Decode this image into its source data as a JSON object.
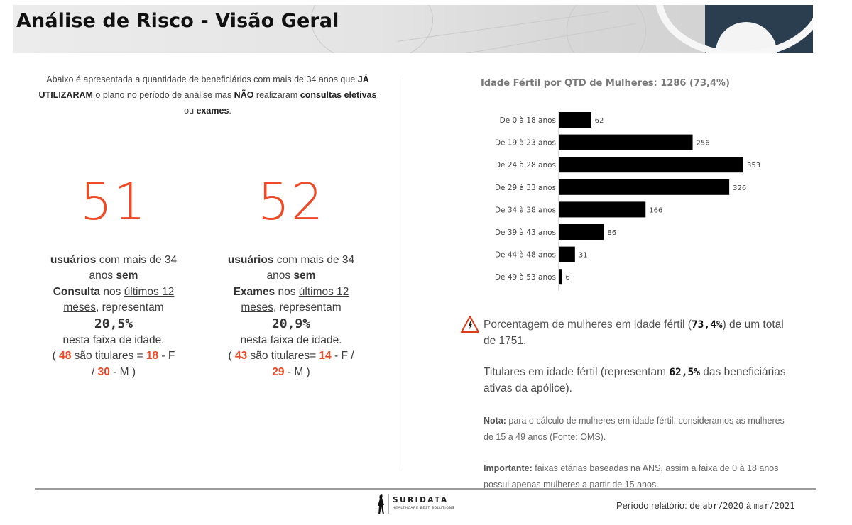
{
  "header": {
    "title": "Análise de Risco - Visão Geral",
    "banner_accent": "#2b3e50"
  },
  "intro": {
    "t1": "Abaixo é apresentada a quantidade de beneficiários com mais de 34 anos que ",
    "b1": "JÁ UTILIZARAM",
    "t2": " o plano no período de análise mas ",
    "b2": "NÃO",
    "t3": " realizaram ",
    "b3": "consultas eletivas",
    "t4": " ou ",
    "b4": "exames",
    "t5": "."
  },
  "stats": [
    {
      "number": "51",
      "u_label": "usuários",
      "t1": " com mais de 34 anos ",
      "sem": "sem",
      "type": "Consulta",
      "t2": " nos ",
      "period": "últimos 12 meses",
      "t3": ", representam",
      "percent": "20,5%",
      "t4": "nesta faixa de idade.",
      "p_open": "( ",
      "titulares": "48",
      "t5": " são titulares = ",
      "f": "18",
      "f_label": " - F / ",
      "m": "30",
      "m_label": " - M )"
    },
    {
      "number": "52",
      "u_label": "usuários",
      "t1": " com mais de 34 anos ",
      "sem": "sem",
      "type": "Exames",
      "t2": " nos ",
      "period": "últimos 12 meses",
      "t3": ", representam",
      "percent": "20,9%",
      "t4": "nesta faixa de idade.",
      "p_open": "( ",
      "titulares": "43",
      "t5": " são titulares= ",
      "f": "14",
      "f_label": " - F / ",
      "m": "29",
      "m_label": " - M )"
    }
  ],
  "accent_color": "#ef4a25",
  "chart_data": {
    "type": "bar",
    "orientation": "horizontal",
    "title": "Idade Fértil por QTD de Mulheres: 1286 (73,4%)",
    "categories": [
      "De 0 à 18 anos",
      "De 19 à 23 anos",
      "De 24 à 28 anos",
      "De 29 à 33 anos",
      "De 34 à 38 anos",
      "De 39 à 43 anos",
      "De 44 à 48 anos",
      "De 49 à 53 anos"
    ],
    "values": [
      62,
      256,
      353,
      326,
      166,
      86,
      31,
      6
    ],
    "bar_color": "#000000",
    "xlim": [
      0,
      353
    ],
    "grid": false,
    "data_labels": true
  },
  "info": {
    "icon": "warning-triangle-icon",
    "p1_a": "Porcentagem de mulheres em idade fértil (",
    "p1_b": "73,4%",
    "p1_c": ") de um total de 1751.",
    "p2_a": "Titulares em idade fértil",
    "p2_b": " (representam ",
    "p2_c": "62,5%",
    "p2_d": " das beneficiárias ativas da apólice).",
    "note_label": "Nota:",
    "note_text": " para o cálculo de mulheres em idade fértil, consideramos as mulheres de 15 a 49 anos (Fonte: OMS).",
    "imp_label": "Importante:",
    "imp_text": " faixas etárias baseadas na ANS, assim a faixa de 0 à 18 anos possui apenas mulheres a partir de 15 anos."
  },
  "footer": {
    "logo_name": "SURIDATA",
    "logo_tagline": "HEALTHCARE BEST SOLUTIONS",
    "period_label": "Período relatório: de ",
    "period_from": "abr/2020",
    "period_mid": " à ",
    "period_to": "mar/2021"
  }
}
